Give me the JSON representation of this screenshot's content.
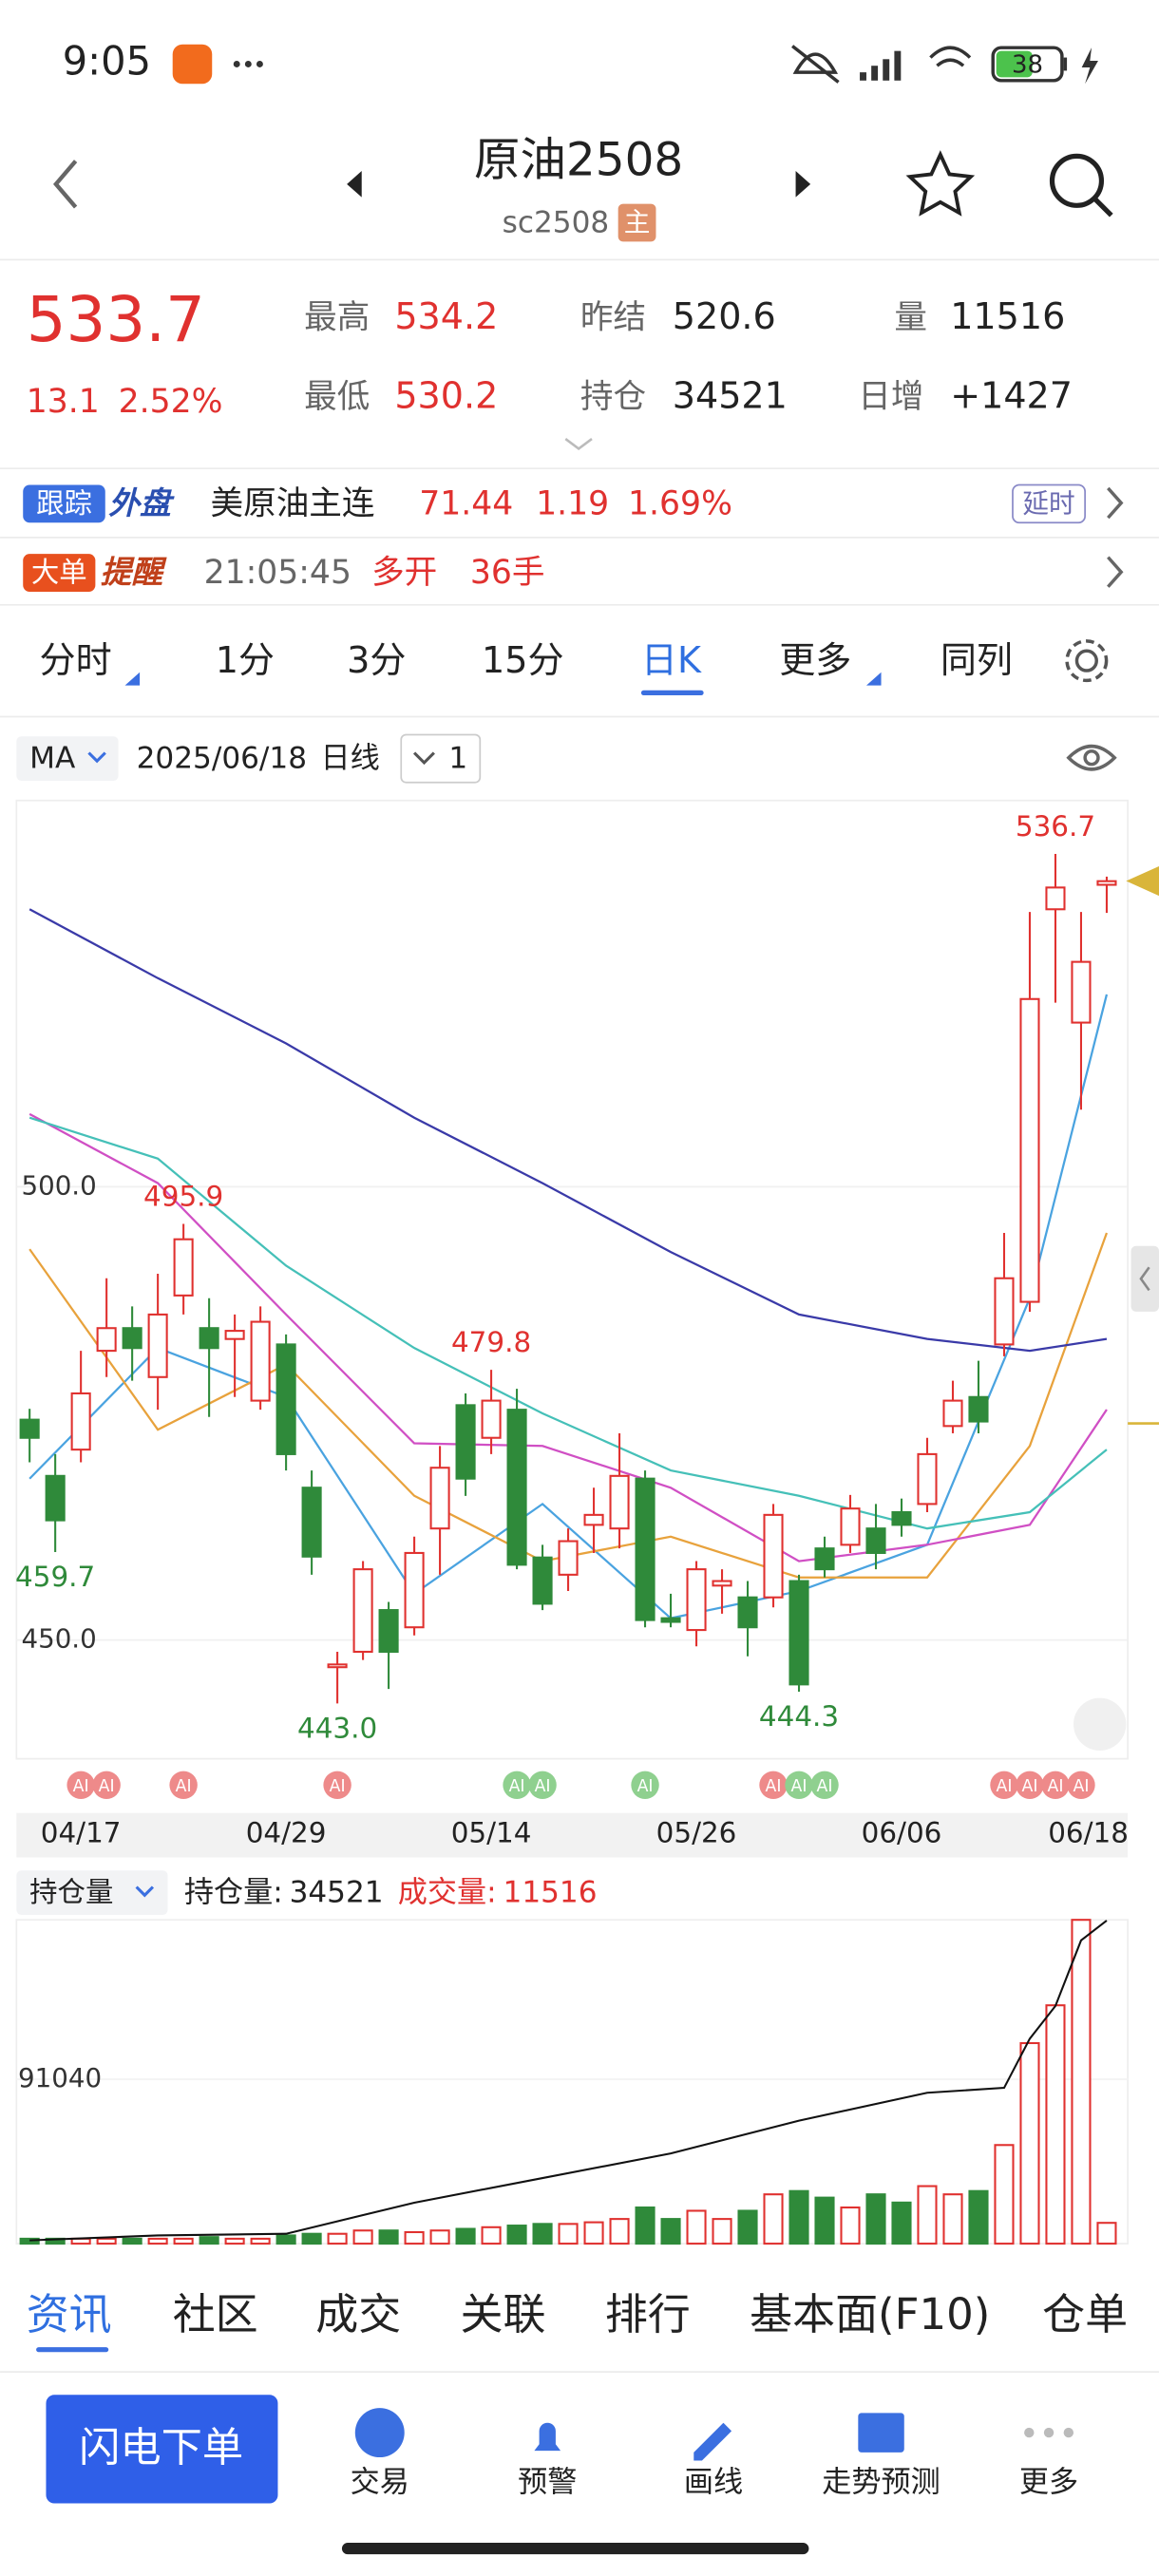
{
  "status": {
    "time": "9:05",
    "battery": "38"
  },
  "header": {
    "title": "原油2508",
    "code": "sc2508",
    "badge": "主"
  },
  "quote": {
    "price": "533.7",
    "change": "13.1",
    "change_pct": "2.52%",
    "stats": [
      {
        "label": "最高",
        "value": "534.2"
      },
      {
        "label": "最低",
        "value": "530.2"
      },
      {
        "label": "昨结",
        "value": "520.6"
      },
      {
        "label": "持仓",
        "value": "34521"
      },
      {
        "label": "量",
        "value": "11516"
      },
      {
        "label": "日增",
        "value": "+1427"
      }
    ]
  },
  "tracker": {
    "badge_a": "跟踪",
    "badge_b": "外盘",
    "name": "美原油主连",
    "price": "71.44",
    "change": "1.19",
    "change_pct": "1.69%",
    "tag": "延时"
  },
  "alert": {
    "badge_a": "大单",
    "badge_b": "提醒",
    "time": "21:05:45",
    "action": "多开",
    "amount": "36手"
  },
  "tabs": [
    "分时",
    "1分",
    "3分",
    "15分",
    "日K",
    "更多",
    "同列"
  ],
  "toolbar": {
    "indicator": "MA",
    "date": "2025/06/18",
    "period": "日线",
    "count": "1"
  },
  "kline": {
    "ylim": [
      436.9,
      542.6
    ],
    "yticks": [
      {
        "value": 500,
        "label": "500.0"
      },
      {
        "value": 450,
        "label": "450.0"
      }
    ],
    "categories": [
      null,
      null,
      "04/17",
      null,
      null,
      null,
      null,
      null,
      null,
      null,
      "04/29",
      null,
      null,
      null,
      null,
      null,
      null,
      null,
      "05/14",
      null,
      null,
      null,
      null,
      null,
      null,
      null,
      "05/26",
      null,
      null,
      null,
      null,
      null,
      null,
      null,
      "06/06",
      null,
      null,
      null,
      null,
      null,
      null,
      null,
      "06/18"
    ],
    "candles": [
      {
        "open": 474.3,
        "high": 475.5,
        "low": 469.6,
        "close": 472.3
      },
      {
        "open": 468.1,
        "high": 470.5,
        "low": 459.7,
        "close": 463.2
      },
      {
        "open": 471.0,
        "high": 481.9,
        "low": 469.6,
        "close": 477.2
      },
      {
        "open": 481.9,
        "high": 489.9,
        "low": 479.0,
        "close": 484.4
      },
      {
        "open": 484.4,
        "high": 486.8,
        "low": 478.6,
        "close": 482.2
      },
      {
        "open": 479.0,
        "high": 490.4,
        "low": 475.4,
        "close": 485.9
      },
      {
        "open": 488.0,
        "high": 495.9,
        "low": 485.9,
        "close": 494.2
      },
      {
        "open": 484.4,
        "high": 487.7,
        "low": 474.6,
        "close": 482.2
      },
      {
        "open": 483.2,
        "high": 485.9,
        "low": 476.8,
        "close": 484.1
      },
      {
        "open": 476.4,
        "high": 486.8,
        "low": 475.4,
        "close": 485.1
      },
      {
        "open": 482.6,
        "high": 483.7,
        "low": 468.7,
        "close": 470.5
      },
      {
        "open": 466.8,
        "high": 468.7,
        "low": 457.2,
        "close": 459.2
      },
      {
        "open": 447.0,
        "high": 448.7,
        "low": 443.0,
        "close": 447.3
      },
      {
        "open": 448.7,
        "high": 458.7,
        "low": 447.8,
        "close": 457.8
      },
      {
        "open": 453.3,
        "high": 454.2,
        "low": 444.6,
        "close": 448.7
      },
      {
        "open": 451.4,
        "high": 461.4,
        "low": 450.5,
        "close": 459.6
      },
      {
        "open": 462.3,
        "high": 471.4,
        "low": 457.2,
        "close": 469.0
      },
      {
        "open": 475.9,
        "high": 477.2,
        "low": 465.9,
        "close": 467.8
      },
      {
        "open": 472.3,
        "high": 479.8,
        "low": 470.5,
        "close": 476.4
      },
      {
        "open": 475.4,
        "high": 477.7,
        "low": 457.8,
        "close": 458.3
      },
      {
        "open": 459.1,
        "high": 460.5,
        "low": 453.3,
        "close": 454.0
      },
      {
        "open": 457.2,
        "high": 462.3,
        "low": 455.4,
        "close": 460.9
      },
      {
        "open": 462.7,
        "high": 466.8,
        "low": 459.6,
        "close": 463.8
      },
      {
        "open": 462.3,
        "high": 472.8,
        "low": 460.1,
        "close": 468.1
      },
      {
        "open": 467.8,
        "high": 468.7,
        "low": 451.4,
        "close": 452.2
      },
      {
        "open": 452.4,
        "high": 455.1,
        "low": 451.4,
        "close": 452.0
      },
      {
        "open": 451.1,
        "high": 458.7,
        "low": 449.3,
        "close": 457.8
      },
      {
        "open": 456.0,
        "high": 457.8,
        "low": 452.9,
        "close": 456.5
      },
      {
        "open": 454.7,
        "high": 456.5,
        "low": 448.2,
        "close": 451.4
      },
      {
        "open": 454.7,
        "high": 465.0,
        "low": 453.6,
        "close": 463.8
      },
      {
        "open": 456.5,
        "high": 457.2,
        "low": 444.3,
        "close": 445.1
      },
      {
        "open": 460.1,
        "high": 461.4,
        "low": 456.9,
        "close": 457.8
      },
      {
        "open": 460.5,
        "high": 466.0,
        "low": 459.6,
        "close": 464.5
      },
      {
        "open": 462.3,
        "high": 465.0,
        "low": 457.8,
        "close": 459.6
      },
      {
        "open": 464.1,
        "high": 465.6,
        "low": 461.4,
        "close": 462.7
      },
      {
        "open": 465.0,
        "high": 472.3,
        "low": 464.1,
        "close": 470.5
      },
      {
        "open": 473.6,
        "high": 478.6,
        "low": 472.8,
        "close": 476.4
      },
      {
        "open": 476.8,
        "high": 480.8,
        "low": 472.8,
        "close": 474.1
      },
      {
        "open": 482.6,
        "high": 494.9,
        "low": 481.3,
        "close": 489.9
      },
      {
        "open": 487.3,
        "high": 530.3,
        "low": 486.2,
        "close": 520.7
      },
      {
        "open": 530.6,
        "high": 536.7,
        "low": 520.3,
        "close": 533.0
      },
      {
        "open": 518.1,
        "high": 530.3,
        "low": 508.5,
        "close": 524.8
      },
      {
        "open": 533.3,
        "high": 534.2,
        "low": 530.2,
        "close": 533.7
      }
    ],
    "ma_lines": [
      {
        "color": "#4aa3e0",
        "x": [
          0,
          5,
          10,
          15,
          20,
          25,
          30,
          35,
          39,
          42
        ],
        "values": [
          467.8,
          482.2,
          476.8,
          455.1,
          465.0,
          452.4,
          455.4,
          460.5,
          487.7,
          521.2
        ]
      },
      {
        "color": "#e8a23c",
        "x": [
          0,
          5,
          10,
          15,
          20,
          25,
          30,
          35,
          39,
          42
        ],
        "values": [
          493.1,
          473.2,
          480.4,
          465.9,
          458.7,
          461.4,
          456.9,
          456.9,
          471.4,
          494.9
        ]
      },
      {
        "color": "#d04fc4",
        "x": [
          0,
          5,
          10,
          15,
          20,
          25,
          30,
          35,
          39,
          42
        ],
        "values": [
          508.0,
          500.4,
          485.9,
          471.7,
          471.4,
          466.8,
          458.7,
          460.5,
          462.7,
          475.4
        ]
      },
      {
        "color": "#45c0b8",
        "x": [
          0,
          5,
          10,
          15,
          20,
          25,
          30,
          35,
          39,
          42
        ],
        "values": [
          507.6,
          503.1,
          491.3,
          482.2,
          475.0,
          468.7,
          465.9,
          462.3,
          464.1,
          471.0
        ]
      },
      {
        "color": "#3a3aa8",
        "x": [
          0,
          5,
          10,
          15,
          20,
          25,
          30,
          35,
          39,
          42
        ],
        "values": [
          530.6,
          523.0,
          515.8,
          507.6,
          500.4,
          492.8,
          485.9,
          483.2,
          481.9,
          483.2
        ]
      }
    ],
    "annotations": [
      {
        "value": 536.7,
        "label": "536.7"
      },
      {
        "value": 495.9,
        "label": "495.9"
      },
      {
        "value": 479.8,
        "label": "479.8"
      },
      {
        "value": 459.7,
        "label": "459.7"
      },
      {
        "value": 443.0,
        "label": "443.0"
      },
      {
        "value": 444.3,
        "label": "444.3"
      }
    ],
    "ai_markers": {
      "text": "AI",
      "candles": [
        2,
        3,
        6,
        12,
        19,
        20,
        24,
        29,
        30,
        31,
        38,
        39,
        40,
        41
      ]
    }
  },
  "volume_panel": {
    "selector": "持仓量",
    "oi_label": "持仓量:",
    "oi_value": "34521",
    "vol_label": "成交量:",
    "vol_value": "11516",
    "ylim": [
      0,
      179350
    ],
    "yticks": [
      91040
    ],
    "values": [
      2730,
      2730,
      2730,
      2730,
      2730,
      2730,
      2730,
      3640,
      2730,
      2730,
      4550,
      5460,
      5460,
      7280,
      7280,
      6370,
      7280,
      8190,
      9100,
      10010,
      10920,
      10920,
      11830,
      13660,
      20030,
      13660,
      18210,
      13660,
      18210,
      27310,
      29130,
      25490,
      20030,
      27310,
      22760,
      31860,
      27310,
      29130,
      54620,
      111070,
      132010,
      179350,
      11516
    ],
    "open_interest": {
      "ylim": [
        0,
        34600
      ],
      "x": [
        0,
        5,
        10,
        15,
        20,
        25,
        30,
        35,
        38,
        39,
        40,
        41,
        42
      ],
      "values": [
        350,
        880,
        1050,
        4380,
        7010,
        9640,
        13140,
        16120,
        16650,
        21900,
        25400,
        32410,
        34521
      ]
    }
  },
  "bottom_tabs": [
    "资讯",
    "社区",
    "成交",
    "关联",
    "排行",
    "基本面(F10)",
    "仓单"
  ],
  "actions": {
    "primary": "闪电下单",
    "items": [
      "交易",
      "预警",
      "画线",
      "走势预测",
      "更多"
    ]
  }
}
